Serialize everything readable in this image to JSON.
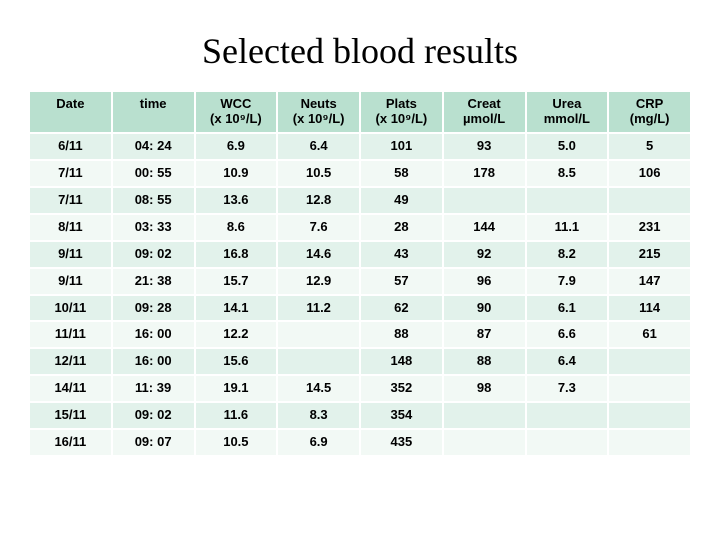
{
  "title": "Selected blood results",
  "colors": {
    "header_bg": "#b9e0cf",
    "band_a": "#e2f2eb",
    "band_b": "#f2f9f5",
    "text": "#000000",
    "page_bg": "#ffffff"
  },
  "typography": {
    "title_font": "Times New Roman",
    "title_size_pt": 28,
    "title_weight": "400",
    "body_font": "Arial",
    "cell_size_pt": 10,
    "cell_weight": "700"
  },
  "table": {
    "columns": [
      {
        "key": "date",
        "label": "Date",
        "sub": ""
      },
      {
        "key": "time",
        "label": "time",
        "sub": ""
      },
      {
        "key": "wcc",
        "label": "WCC",
        "sub": "(x 10⁹/L)"
      },
      {
        "key": "neuts",
        "label": "Neuts",
        "sub": "(x 10⁹/L)"
      },
      {
        "key": "plats",
        "label": "Plats",
        "sub": "(x 10⁹/L)"
      },
      {
        "key": "creat",
        "label": "Creat",
        "sub": "µmol/L"
      },
      {
        "key": "urea",
        "label": "Urea",
        "sub": "mmol/L"
      },
      {
        "key": "crp",
        "label": "CRP",
        "sub": "(mg/L)"
      }
    ],
    "rows": [
      {
        "date": "6/11",
        "time": "04: 24",
        "wcc": "6.9",
        "neuts": "6.4",
        "plats": "101",
        "creat": "93",
        "urea": "5.0",
        "crp": "5"
      },
      {
        "date": "7/11",
        "time": "00: 55",
        "wcc": "10.9",
        "neuts": "10.5",
        "plats": "58",
        "creat": "178",
        "urea": "8.5",
        "crp": "106"
      },
      {
        "date": "7/11",
        "time": "08: 55",
        "wcc": "13.6",
        "neuts": "12.8",
        "plats": "49",
        "creat": "",
        "urea": "",
        "crp": ""
      },
      {
        "date": "8/11",
        "time": "03: 33",
        "wcc": "8.6",
        "neuts": "7.6",
        "plats": "28",
        "creat": "144",
        "urea": "11.1",
        "crp": "231"
      },
      {
        "date": "9/11",
        "time": "09: 02",
        "wcc": "16.8",
        "neuts": "14.6",
        "plats": "43",
        "creat": "92",
        "urea": "8.2",
        "crp": "215"
      },
      {
        "date": "9/11",
        "time": "21: 38",
        "wcc": "15.7",
        "neuts": "12.9",
        "plats": "57",
        "creat": "96",
        "urea": "7.9",
        "crp": "147"
      },
      {
        "date": "10/11",
        "time": "09: 28",
        "wcc": "14.1",
        "neuts": "11.2",
        "plats": "62",
        "creat": "90",
        "urea": "6.1",
        "crp": "114"
      },
      {
        "date": "11/11",
        "time": "16: 00",
        "wcc": "12.2",
        "neuts": "",
        "plats": "88",
        "creat": "87",
        "urea": "6.6",
        "crp": "61"
      },
      {
        "date": "12/11",
        "time": "16: 00",
        "wcc": "15.6",
        "neuts": "",
        "plats": "148",
        "creat": "88",
        "urea": "6.4",
        "crp": ""
      },
      {
        "date": "14/11",
        "time": "11: 39",
        "wcc": "19.1",
        "neuts": "14.5",
        "plats": "352",
        "creat": "98",
        "urea": "7.3",
        "crp": ""
      },
      {
        "date": "15/11",
        "time": "09: 02",
        "wcc": "11.6",
        "neuts": "8.3",
        "plats": "354",
        "creat": "",
        "urea": "",
        "crp": ""
      },
      {
        "date": "16/11",
        "time": "09: 07",
        "wcc": "10.5",
        "neuts": "6.9",
        "plats": "435",
        "creat": "",
        "urea": "",
        "crp": ""
      }
    ]
  }
}
